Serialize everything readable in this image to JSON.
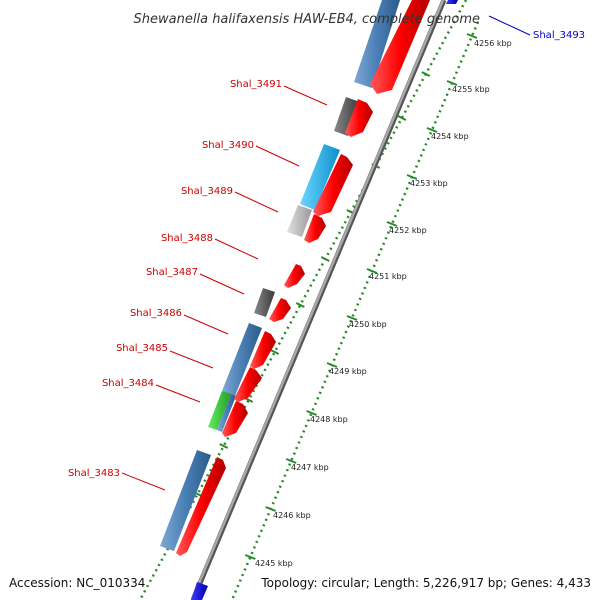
{
  "title": "Shewanella halifaxensis HAW-EB4, complete genome",
  "footer": {
    "accession": "Accession: NC_010334",
    "topology": "Topology: circular; Length: 5,226,917 bp; Genes: 4,433"
  },
  "colors": {
    "forward_gene": "#ff0000",
    "reverse_steelblue": "#4a7fb5",
    "reverse_darkgray": "#555555",
    "reverse_lightgray": "#bbbbbb",
    "reverse_cyan": "#1ab6f0",
    "reverse_green": "#33cc33",
    "blue_gene": "#0000ee",
    "label_red": "#cc0000",
    "label_blue": "#0000cc",
    "ticks": "#2a8a2a",
    "backbone": "#888888"
  },
  "gene_labels": [
    {
      "text": "Shal_3493",
      "color": "label_blue"
    },
    {
      "text": "Shal_3491",
      "color": "label_red"
    },
    {
      "text": "Shal_3490",
      "color": "label_red"
    },
    {
      "text": "Shal_3489",
      "color": "label_red"
    },
    {
      "text": "Shal_3488",
      "color": "label_red"
    },
    {
      "text": "Shal_3487",
      "color": "label_red"
    },
    {
      "text": "Shal_3486",
      "color": "label_red"
    },
    {
      "text": "Shal_3485",
      "color": "label_red"
    },
    {
      "text": "Shal_3484",
      "color": "label_red"
    },
    {
      "text": "Shal_3483",
      "color": "label_red"
    }
  ],
  "kbp_labels": [
    "4256 kbp",
    "4255 kbp",
    "4254 kbp",
    "4253 kbp",
    "4252 kbp",
    "4251 kbp",
    "4250 kbp",
    "4249 kbp",
    "4248 kbp",
    "4247 kbp",
    "4246 kbp",
    "4245 kbp"
  ]
}
